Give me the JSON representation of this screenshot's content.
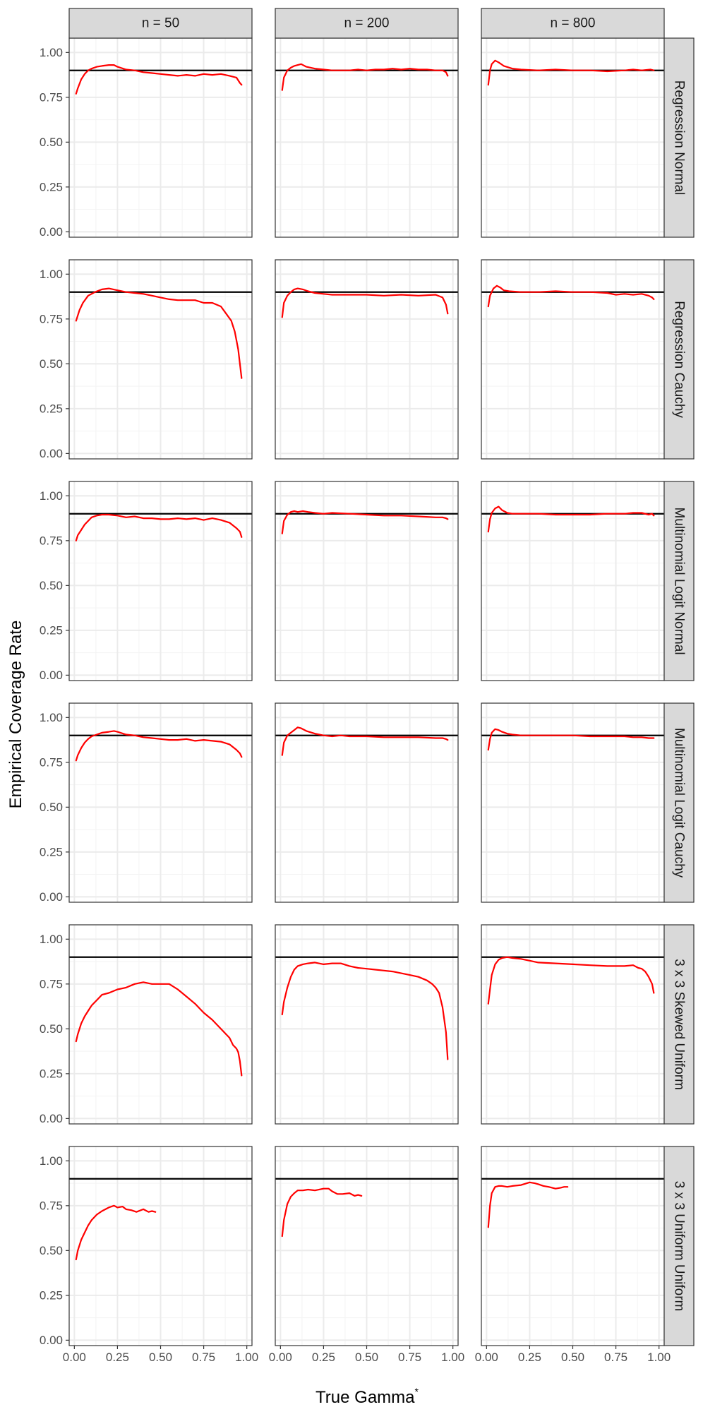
{
  "chart_data": {
    "type": "line",
    "layout": "facet-grid",
    "xlabel": "True Gamma",
    "xlabel_superscript": "*",
    "ylabel": "Empirical Coverage Rate",
    "xlim": [
      -0.03,
      1.03
    ],
    "ylim": [
      -0.03,
      1.08
    ],
    "x_ticks": [
      "0.00",
      "0.25",
      "0.50",
      "0.75",
      "1.00"
    ],
    "x_tick_values": [
      0,
      0.25,
      0.5,
      0.75,
      1.0
    ],
    "y_ticks": [
      "0.00",
      "0.25",
      "0.50",
      "0.75",
      "1.00"
    ],
    "y_tick_values": [
      0,
      0.25,
      0.5,
      0.75,
      1.0
    ],
    "reference_line": 0.9,
    "grid": true,
    "colors": {
      "series": "#ff0000",
      "reference": "#000000",
      "strip_bg": "#d9d9d9",
      "grid": "#ebebeb",
      "border": "#333333"
    },
    "columns": [
      "n = 50",
      "n = 200",
      "n = 800"
    ],
    "rows": [
      "Regression Normal",
      "Regression Cauchy",
      "Multinomial Logit Normal",
      "Multinomial Logit Cauchy",
      "3 x 3 Skewed Uniform",
      "3 x 3 Uniform Uniform"
    ],
    "series": [
      [
        {
          "x": [
            0.01,
            0.02,
            0.04,
            0.06,
            0.08,
            0.1,
            0.13,
            0.16,
            0.2,
            0.23,
            0.25,
            0.3,
            0.35,
            0.4,
            0.45,
            0.5,
            0.55,
            0.6,
            0.65,
            0.7,
            0.75,
            0.8,
            0.85,
            0.9,
            0.94,
            0.96,
            0.97
          ],
          "y": [
            0.77,
            0.8,
            0.85,
            0.88,
            0.9,
            0.91,
            0.92,
            0.925,
            0.93,
            0.93,
            0.92,
            0.905,
            0.9,
            0.89,
            0.885,
            0.88,
            0.875,
            0.87,
            0.875,
            0.87,
            0.88,
            0.875,
            0.88,
            0.87,
            0.86,
            0.83,
            0.82
          ]
        },
        {
          "x": [
            0.01,
            0.02,
            0.04,
            0.06,
            0.08,
            0.1,
            0.12,
            0.15,
            0.2,
            0.25,
            0.3,
            0.35,
            0.4,
            0.45,
            0.5,
            0.55,
            0.6,
            0.65,
            0.7,
            0.75,
            0.8,
            0.85,
            0.9,
            0.94,
            0.96,
            0.97
          ],
          "y": [
            0.79,
            0.86,
            0.9,
            0.915,
            0.925,
            0.93,
            0.935,
            0.92,
            0.91,
            0.905,
            0.9,
            0.9,
            0.9,
            0.905,
            0.9,
            0.905,
            0.905,
            0.91,
            0.905,
            0.91,
            0.905,
            0.905,
            0.9,
            0.9,
            0.89,
            0.87
          ]
        },
        {
          "x": [
            0.01,
            0.02,
            0.03,
            0.05,
            0.07,
            0.1,
            0.15,
            0.2,
            0.3,
            0.4,
            0.5,
            0.6,
            0.7,
            0.8,
            0.85,
            0.9,
            0.95,
            0.97
          ],
          "y": [
            0.82,
            0.9,
            0.935,
            0.955,
            0.945,
            0.925,
            0.91,
            0.905,
            0.9,
            0.905,
            0.9,
            0.9,
            0.895,
            0.9,
            0.905,
            0.9,
            0.905,
            0.9
          ]
        }
      ],
      [
        {
          "x": [
            0.01,
            0.03,
            0.05,
            0.08,
            0.12,
            0.16,
            0.2,
            0.25,
            0.3,
            0.35,
            0.4,
            0.45,
            0.5,
            0.55,
            0.6,
            0.65,
            0.7,
            0.75,
            0.8,
            0.85,
            0.88,
            0.91,
            0.93,
            0.95,
            0.96,
            0.97
          ],
          "y": [
            0.74,
            0.8,
            0.84,
            0.88,
            0.9,
            0.915,
            0.92,
            0.91,
            0.9,
            0.895,
            0.89,
            0.88,
            0.87,
            0.86,
            0.855,
            0.855,
            0.855,
            0.84,
            0.84,
            0.82,
            0.78,
            0.74,
            0.68,
            0.58,
            0.5,
            0.42
          ]
        },
        {
          "x": [
            0.01,
            0.02,
            0.04,
            0.06,
            0.08,
            0.1,
            0.13,
            0.16,
            0.2,
            0.25,
            0.3,
            0.4,
            0.5,
            0.6,
            0.7,
            0.8,
            0.9,
            0.94,
            0.96,
            0.97
          ],
          "y": [
            0.76,
            0.84,
            0.88,
            0.9,
            0.915,
            0.92,
            0.915,
            0.905,
            0.895,
            0.89,
            0.885,
            0.885,
            0.885,
            0.88,
            0.885,
            0.88,
            0.885,
            0.87,
            0.83,
            0.78
          ]
        },
        {
          "x": [
            0.01,
            0.02,
            0.04,
            0.06,
            0.08,
            0.1,
            0.13,
            0.2,
            0.3,
            0.4,
            0.5,
            0.6,
            0.7,
            0.75,
            0.8,
            0.85,
            0.9,
            0.94,
            0.96,
            0.97
          ],
          "y": [
            0.82,
            0.88,
            0.92,
            0.935,
            0.925,
            0.91,
            0.905,
            0.9,
            0.9,
            0.905,
            0.9,
            0.9,
            0.895,
            0.885,
            0.89,
            0.885,
            0.89,
            0.88,
            0.87,
            0.86
          ]
        }
      ],
      [
        {
          "x": [
            0.01,
            0.02,
            0.04,
            0.06,
            0.08,
            0.1,
            0.13,
            0.16,
            0.2,
            0.25,
            0.3,
            0.35,
            0.4,
            0.45,
            0.5,
            0.55,
            0.6,
            0.65,
            0.7,
            0.75,
            0.8,
            0.85,
            0.9,
            0.94,
            0.96,
            0.97
          ],
          "y": [
            0.75,
            0.78,
            0.81,
            0.84,
            0.86,
            0.88,
            0.89,
            0.895,
            0.895,
            0.89,
            0.88,
            0.885,
            0.875,
            0.875,
            0.87,
            0.87,
            0.875,
            0.87,
            0.875,
            0.865,
            0.875,
            0.865,
            0.85,
            0.82,
            0.8,
            0.77
          ]
        },
        {
          "x": [
            0.01,
            0.02,
            0.04,
            0.06,
            0.08,
            0.1,
            0.13,
            0.16,
            0.2,
            0.25,
            0.3,
            0.4,
            0.5,
            0.6,
            0.7,
            0.8,
            0.9,
            0.94,
            0.96,
            0.97
          ],
          "y": [
            0.79,
            0.86,
            0.895,
            0.91,
            0.915,
            0.91,
            0.915,
            0.91,
            0.905,
            0.9,
            0.905,
            0.9,
            0.895,
            0.89,
            0.89,
            0.885,
            0.88,
            0.88,
            0.875,
            0.87
          ]
        },
        {
          "x": [
            0.01,
            0.02,
            0.03,
            0.05,
            0.07,
            0.09,
            0.12,
            0.15,
            0.2,
            0.3,
            0.4,
            0.5,
            0.6,
            0.7,
            0.8,
            0.85,
            0.9,
            0.94,
            0.96,
            0.97
          ],
          "y": [
            0.8,
            0.87,
            0.905,
            0.93,
            0.94,
            0.92,
            0.905,
            0.9,
            0.9,
            0.9,
            0.895,
            0.895,
            0.895,
            0.9,
            0.9,
            0.905,
            0.905,
            0.895,
            0.9,
            0.89
          ]
        }
      ],
      [
        {
          "x": [
            0.01,
            0.02,
            0.04,
            0.06,
            0.08,
            0.1,
            0.13,
            0.16,
            0.2,
            0.23,
            0.25,
            0.3,
            0.35,
            0.4,
            0.45,
            0.5,
            0.55,
            0.6,
            0.65,
            0.7,
            0.75,
            0.8,
            0.85,
            0.9,
            0.94,
            0.96,
            0.97
          ],
          "y": [
            0.76,
            0.79,
            0.83,
            0.86,
            0.88,
            0.895,
            0.905,
            0.915,
            0.92,
            0.925,
            0.92,
            0.905,
            0.9,
            0.89,
            0.885,
            0.88,
            0.875,
            0.875,
            0.88,
            0.87,
            0.875,
            0.87,
            0.865,
            0.85,
            0.82,
            0.8,
            0.78
          ]
        },
        {
          "x": [
            0.01,
            0.02,
            0.04,
            0.06,
            0.08,
            0.1,
            0.12,
            0.15,
            0.2,
            0.25,
            0.3,
            0.35,
            0.4,
            0.5,
            0.6,
            0.7,
            0.8,
            0.9,
            0.94,
            0.96,
            0.97
          ],
          "y": [
            0.79,
            0.86,
            0.9,
            0.915,
            0.93,
            0.945,
            0.94,
            0.925,
            0.91,
            0.9,
            0.895,
            0.9,
            0.895,
            0.895,
            0.89,
            0.89,
            0.89,
            0.885,
            0.885,
            0.88,
            0.875
          ]
        },
        {
          "x": [
            0.01,
            0.02,
            0.03,
            0.05,
            0.07,
            0.09,
            0.12,
            0.15,
            0.2,
            0.3,
            0.4,
            0.5,
            0.6,
            0.7,
            0.8,
            0.85,
            0.9,
            0.94,
            0.96,
            0.97
          ],
          "y": [
            0.82,
            0.88,
            0.915,
            0.935,
            0.93,
            0.92,
            0.91,
            0.905,
            0.9,
            0.9,
            0.9,
            0.9,
            0.895,
            0.895,
            0.895,
            0.89,
            0.89,
            0.885,
            0.885,
            0.885
          ]
        }
      ],
      [
        {
          "x": [
            0.01,
            0.02,
            0.04,
            0.06,
            0.08,
            0.1,
            0.13,
            0.16,
            0.2,
            0.25,
            0.3,
            0.35,
            0.4,
            0.45,
            0.5,
            0.55,
            0.6,
            0.65,
            0.7,
            0.75,
            0.8,
            0.85,
            0.9,
            0.92,
            0.94,
            0.95,
            0.96,
            0.97
          ],
          "y": [
            0.43,
            0.47,
            0.53,
            0.57,
            0.6,
            0.63,
            0.66,
            0.69,
            0.7,
            0.72,
            0.73,
            0.75,
            0.76,
            0.75,
            0.75,
            0.75,
            0.72,
            0.68,
            0.64,
            0.59,
            0.55,
            0.5,
            0.45,
            0.41,
            0.39,
            0.37,
            0.32,
            0.24
          ]
        },
        {
          "x": [
            0.01,
            0.02,
            0.04,
            0.06,
            0.08,
            0.1,
            0.13,
            0.16,
            0.2,
            0.25,
            0.3,
            0.35,
            0.4,
            0.45,
            0.5,
            0.55,
            0.6,
            0.65,
            0.7,
            0.75,
            0.8,
            0.85,
            0.88,
            0.9,
            0.92,
            0.94,
            0.96,
            0.97
          ],
          "y": [
            0.58,
            0.65,
            0.73,
            0.79,
            0.83,
            0.85,
            0.86,
            0.865,
            0.87,
            0.86,
            0.865,
            0.865,
            0.85,
            0.84,
            0.835,
            0.83,
            0.825,
            0.82,
            0.81,
            0.8,
            0.79,
            0.77,
            0.75,
            0.73,
            0.7,
            0.62,
            0.48,
            0.33
          ]
        },
        {
          "x": [
            0.01,
            0.02,
            0.03,
            0.05,
            0.07,
            0.09,
            0.12,
            0.15,
            0.2,
            0.25,
            0.3,
            0.4,
            0.5,
            0.6,
            0.7,
            0.8,
            0.85,
            0.88,
            0.9,
            0.92,
            0.94,
            0.96,
            0.97
          ],
          "y": [
            0.64,
            0.72,
            0.8,
            0.86,
            0.885,
            0.895,
            0.9,
            0.895,
            0.89,
            0.88,
            0.87,
            0.865,
            0.86,
            0.855,
            0.85,
            0.85,
            0.855,
            0.84,
            0.835,
            0.82,
            0.79,
            0.75,
            0.7
          ]
        }
      ],
      [
        {
          "x": [
            0.01,
            0.02,
            0.04,
            0.06,
            0.08,
            0.1,
            0.13,
            0.16,
            0.2,
            0.23,
            0.25,
            0.28,
            0.3,
            0.33,
            0.36,
            0.4,
            0.43,
            0.45,
            0.47
          ],
          "y": [
            0.45,
            0.5,
            0.56,
            0.6,
            0.64,
            0.67,
            0.7,
            0.72,
            0.74,
            0.75,
            0.74,
            0.745,
            0.73,
            0.725,
            0.715,
            0.73,
            0.715,
            0.72,
            0.715
          ]
        },
        {
          "x": [
            0.01,
            0.02,
            0.04,
            0.06,
            0.08,
            0.1,
            0.13,
            0.16,
            0.2,
            0.25,
            0.28,
            0.3,
            0.33,
            0.36,
            0.4,
            0.43,
            0.45,
            0.47
          ],
          "y": [
            0.58,
            0.67,
            0.76,
            0.8,
            0.82,
            0.835,
            0.835,
            0.84,
            0.835,
            0.845,
            0.845,
            0.83,
            0.815,
            0.815,
            0.82,
            0.805,
            0.81,
            0.805
          ]
        },
        {
          "x": [
            0.01,
            0.02,
            0.03,
            0.05,
            0.07,
            0.09,
            0.12,
            0.15,
            0.2,
            0.25,
            0.28,
            0.3,
            0.33,
            0.36,
            0.4,
            0.43,
            0.45,
            0.47
          ],
          "y": [
            0.63,
            0.75,
            0.82,
            0.855,
            0.86,
            0.86,
            0.855,
            0.86,
            0.865,
            0.88,
            0.875,
            0.87,
            0.86,
            0.855,
            0.845,
            0.85,
            0.855,
            0.855
          ]
        }
      ]
    ]
  }
}
